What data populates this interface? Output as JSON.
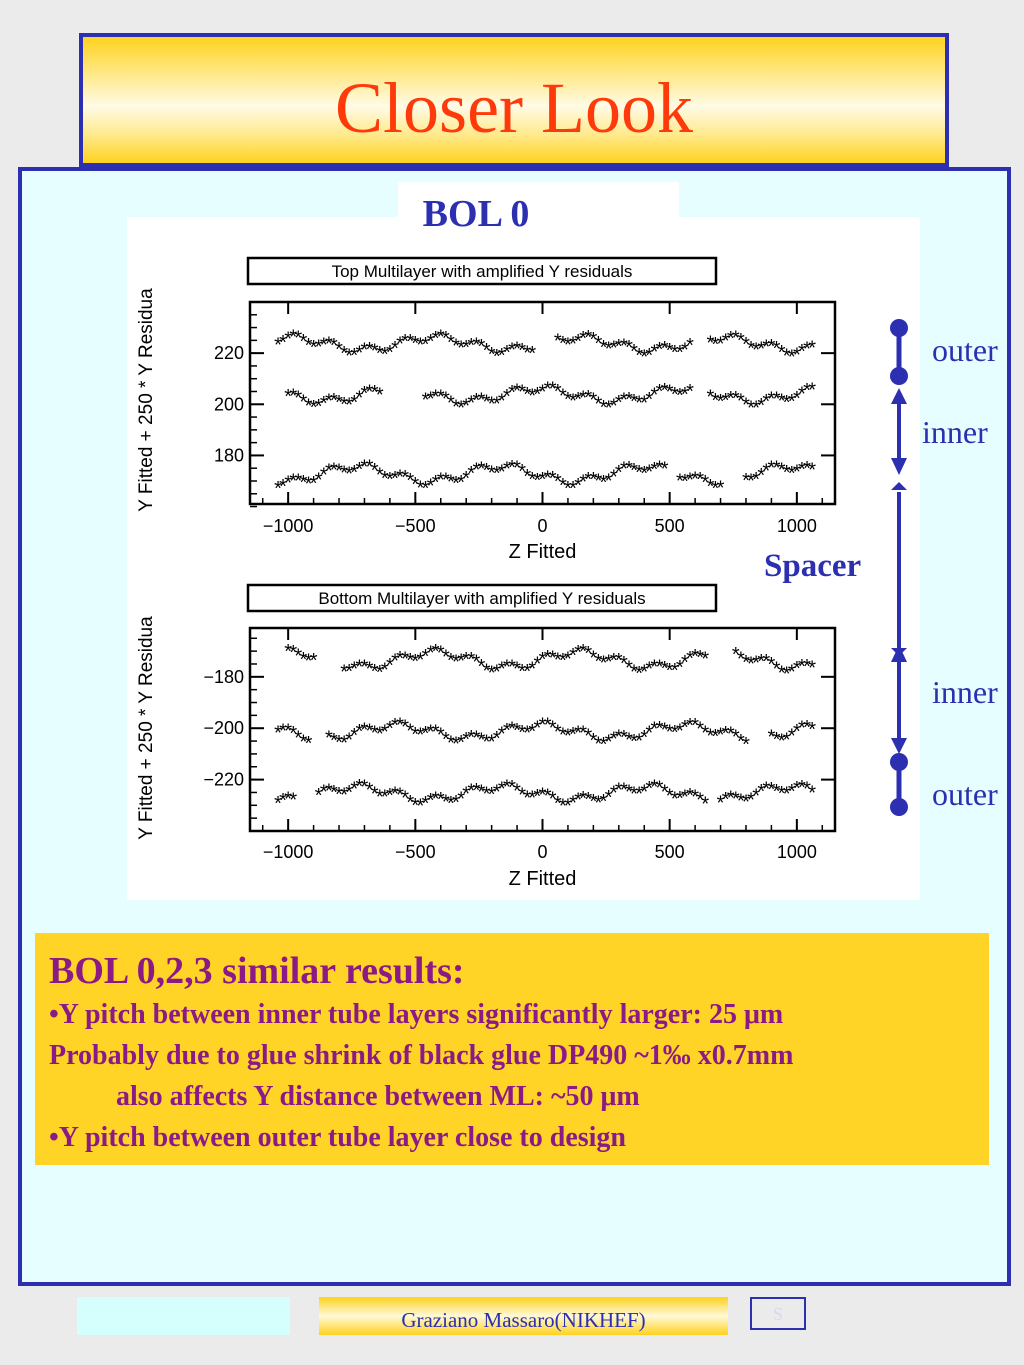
{
  "slide": {
    "title": "Closer Look",
    "bol_label": "BOL 0",
    "side_labels": {
      "outer_top": "outer",
      "inner_top": "inner",
      "spacer": "Spacer",
      "inner_bottom": "inner",
      "outer_bottom": "outer"
    },
    "colors": {
      "title": "#ff3a0a",
      "frame": "#2b2fb0",
      "results_bg": "#ffd426",
      "results_text": "#8b1a87",
      "content_bg": "#e6feff"
    },
    "results": {
      "heading": "BOL 0,2,3 similar results:",
      "lines": [
        "•Y pitch between inner tube layers significantly larger: 25 μm",
        "Probably due to glue shrink of black glue DP490  ~1‰ x0.7mm",
        "also affects Y distance between ML: ~50 μm",
        "•Y pitch between outer tube layer close to design"
      ]
    },
    "footer": {
      "author": "Graziano Massaro(NIKHEF)",
      "page": "S"
    }
  },
  "chart_data": [
    {
      "type": "scatter",
      "title": "Top Multilayer with amplified Y residuals",
      "xlabel": "Z Fitted",
      "ylabel": "Y Fitted + 250 * Y Residua",
      "xlim": [
        -1150,
        1150
      ],
      "ylim": [
        161,
        240
      ],
      "xticks": [
        -1000,
        -500,
        0,
        500,
        1000
      ],
      "yticks": [
        220,
        200,
        180
      ],
      "marker": "*",
      "series": [
        {
          "z_start": -1040,
          "z_step": 20,
          "y_base": 223,
          "y_amp": 2.5,
          "gaps": [
            [
              -30,
              50
            ],
            [
              600,
              650
            ]
          ]
        },
        {
          "z_start": -1000,
          "z_step": 20,
          "y_base": 203,
          "y_amp": 2.5,
          "gaps": [
            [
              -620,
              -480
            ],
            [
              600,
              650
            ]
          ]
        },
        {
          "z_start": -1040,
          "z_step": 20,
          "y_base": 172,
          "y_amp": 3,
          "gaps": [
            [
              500,
              520
            ],
            [
              720,
              780
            ]
          ]
        }
      ]
    },
    {
      "type": "scatter",
      "title": "Bottom Multilayer with amplified Y residuals",
      "xlabel": "Z Fitted",
      "ylabel": "Y Fitted + 250 * Y Residua",
      "xlim": [
        -1150,
        1150
      ],
      "ylim": [
        -240,
        -161
      ],
      "xticks": [
        -1000,
        -500,
        0,
        500,
        1000
      ],
      "yticks": [
        -180,
        -200,
        -220
      ],
      "marker": "*",
      "series": [
        {
          "z_start": -1000,
          "z_step": 20,
          "y_base": -174,
          "y_amp": 3,
          "gaps": [
            [
              -880,
              -800
            ],
            [
              650,
              750
            ]
          ]
        },
        {
          "z_start": -1040,
          "z_step": 20,
          "y_base": -202,
          "y_amp": 2.5,
          "gaps": [
            [
              -900,
              -860
            ],
            [
              820,
              880
            ]
          ]
        },
        {
          "z_start": -1040,
          "z_step": 20,
          "y_base": -226,
          "y_amp": 2.5,
          "gaps": [
            [
              -960,
              -900
            ],
            [
              650,
              680
            ]
          ]
        }
      ]
    }
  ]
}
